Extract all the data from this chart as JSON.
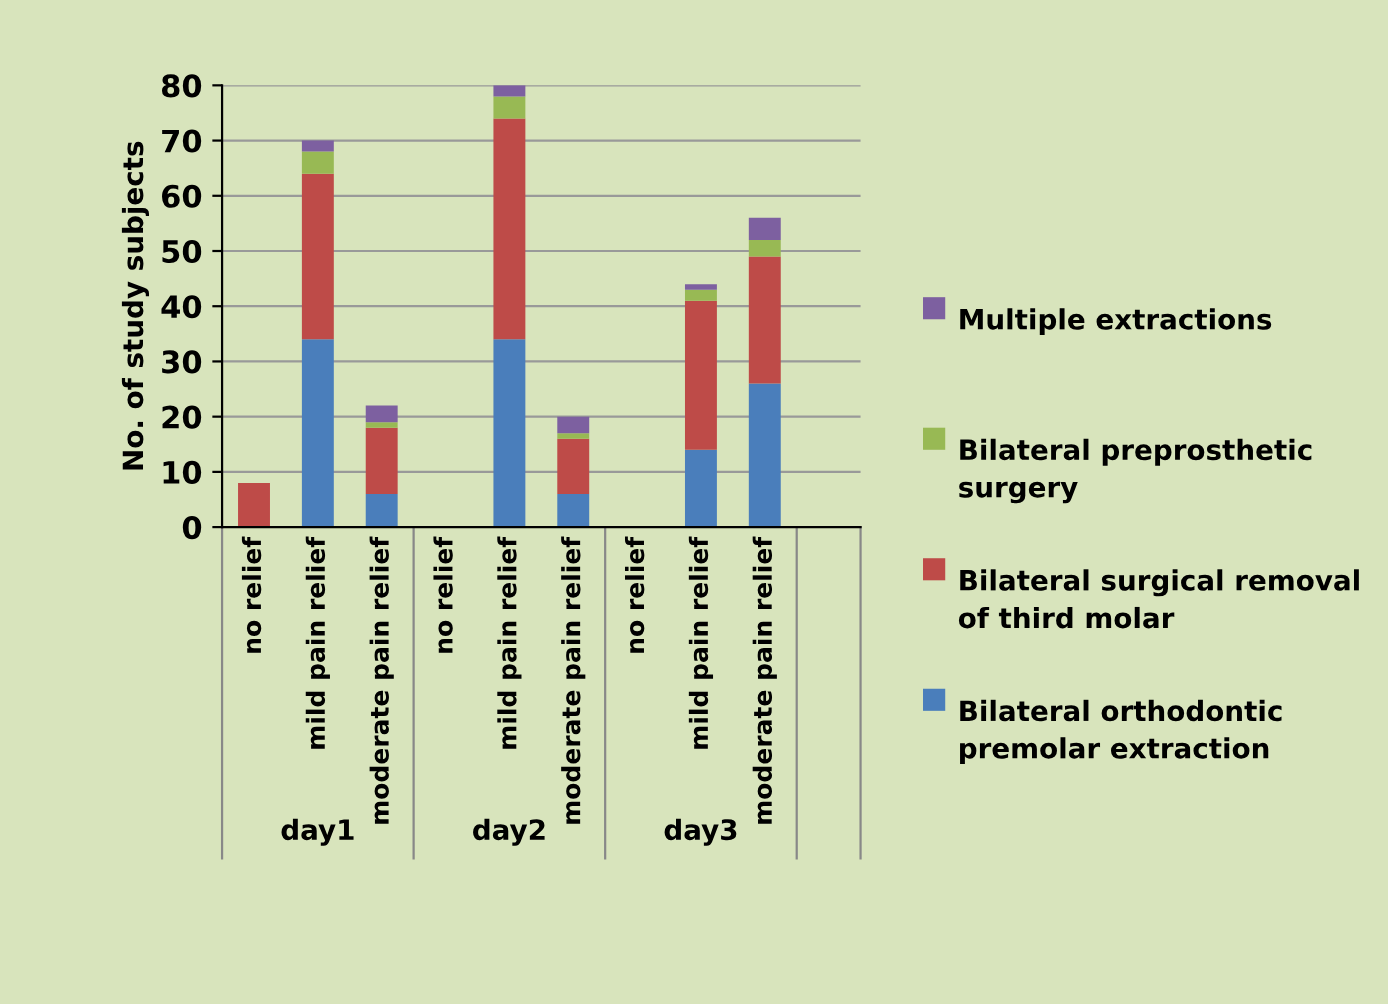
{
  "chart_data": {
    "type": "bar",
    "stacked": true,
    "ylabel": "No. of study subjects",
    "categories": [
      "no relief",
      "mild pain relief",
      "moderate pain relief",
      "no relief",
      "mild pain relief",
      "moderate pain relief",
      "no relief",
      "mild pain relief",
      "moderate pain relief"
    ],
    "series": [
      {
        "name": "Bilateral orthodontic premolar extraction",
        "color": "#4a7ebb",
        "values": [
          0,
          34,
          6,
          0,
          34,
          6,
          0,
          14,
          26
        ]
      },
      {
        "name": "Bilateral surgical removal of third molar",
        "color": "#be4b48",
        "values": [
          8,
          30,
          12,
          0,
          40,
          10,
          0,
          27,
          23
        ]
      },
      {
        "name": "Bilateral preprosthetic surgery",
        "color": "#98b954",
        "values": [
          0,
          4,
          1,
          0,
          4,
          1,
          0,
          2,
          3
        ]
      },
      {
        "name": "Multiple extractions",
        "color": "#7d60a0",
        "values": [
          0,
          2,
          3,
          0,
          2,
          3,
          0,
          1,
          4
        ]
      }
    ],
    "annotations": [
      "day1",
      "day2",
      "day3"
    ],
    "ylim": [
      0,
      80
    ],
    "yticks": [
      0,
      10,
      20,
      30,
      40,
      50,
      60,
      70,
      80
    ],
    "grid": "y",
    "legend": "right"
  }
}
